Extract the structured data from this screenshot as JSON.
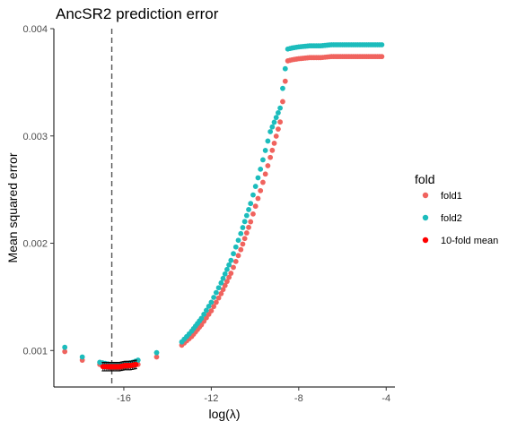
{
  "chart_data": {
    "type": "scatter",
    "title": "AncSR2 prediction error",
    "xlabel": "log(λ)",
    "ylabel": "Mean squared error",
    "xlim": [
      -19.2,
      -3.6
    ],
    "ylim": [
      0.00066,
      0.004
    ],
    "x_ticks": [
      -16,
      -12,
      -8,
      -4
    ],
    "x_tick_labels": [
      "-16",
      "-12",
      "-8",
      "-4"
    ],
    "y_ticks": [
      0.001,
      0.002,
      0.003,
      0.004
    ],
    "y_tick_labels": [
      "0.001",
      "0.002",
      "0.003",
      "0.004"
    ],
    "vline_x": -16.55,
    "legend": {
      "title": "fold",
      "position": "right"
    },
    "series": [
      {
        "name": "fold1",
        "color": "#f0635e",
        "style": "dot",
        "x": [
          -18.7,
          -17.9,
          -17.1,
          -16.85,
          -16.6,
          -16.35,
          -16.1,
          -15.85,
          -15.6,
          -15.35,
          -14.5,
          -13.35,
          -12.9,
          -12.45,
          -12.0,
          -11.55,
          -11.1,
          -10.65,
          -10.2,
          -9.75,
          -9.3,
          -8.85,
          -8.5,
          -8.3,
          -8.0,
          -7.5,
          -7.0,
          -6.5,
          -6.0,
          -5.5,
          -5.0,
          -4.5,
          -4.2
        ],
        "y": [
          0.00099,
          0.00091,
          0.00087,
          0.00085,
          0.00084,
          0.00084,
          0.00084,
          0.00085,
          0.00086,
          0.00087,
          0.00094,
          0.00105,
          0.00113,
          0.00124,
          0.00137,
          0.00153,
          0.00172,
          0.00194,
          0.0022,
          0.00249,
          0.0028,
          0.00313,
          0.0037,
          0.00371,
          0.00372,
          0.00373,
          0.00373,
          0.00374,
          0.00374,
          0.00374,
          0.00374,
          0.00374,
          0.00374
        ]
      },
      {
        "name": "fold2",
        "color": "#1cbcbc",
        "style": "dot",
        "x": [
          -18.7,
          -17.9,
          -17.1,
          -16.85,
          -16.6,
          -16.35,
          -16.1,
          -15.85,
          -15.6,
          -15.35,
          -14.5,
          -13.35,
          -12.9,
          -12.45,
          -12.0,
          -11.55,
          -11.1,
          -10.65,
          -10.2,
          -9.75,
          -9.3,
          -8.85,
          -8.5,
          -8.3,
          -8.0,
          -7.5,
          -7.0,
          -6.5,
          -6.0,
          -5.5,
          -5.0,
          -4.5,
          -4.2
        ],
        "y": [
          0.00103,
          0.00094,
          0.00089,
          0.00088,
          0.00087,
          0.00087,
          0.00087,
          0.00088,
          0.00089,
          0.00091,
          0.00098,
          0.00108,
          0.00118,
          0.0013,
          0.00145,
          0.00163,
          0.00184,
          0.00209,
          0.00237,
          0.00269,
          0.00304,
          0.00326,
          0.00381,
          0.00382,
          0.00383,
          0.00384,
          0.00384,
          0.00385,
          0.00385,
          0.00385,
          0.00385,
          0.00385,
          0.00385
        ]
      },
      {
        "name": "10-fold mean",
        "color": "#ff0000",
        "style": "dot-errorbar",
        "x": [
          -16.95,
          -16.7,
          -16.45,
          -16.2,
          -15.95,
          -15.7,
          -15.45
        ],
        "y": [
          0.00085,
          0.00085,
          0.00085,
          0.00085,
          0.00086,
          0.00086,
          0.00087
        ],
        "error": [
          4e-05,
          4e-05,
          4e-05,
          4e-05,
          4e-05,
          4e-05,
          4e-05
        ]
      }
    ]
  }
}
